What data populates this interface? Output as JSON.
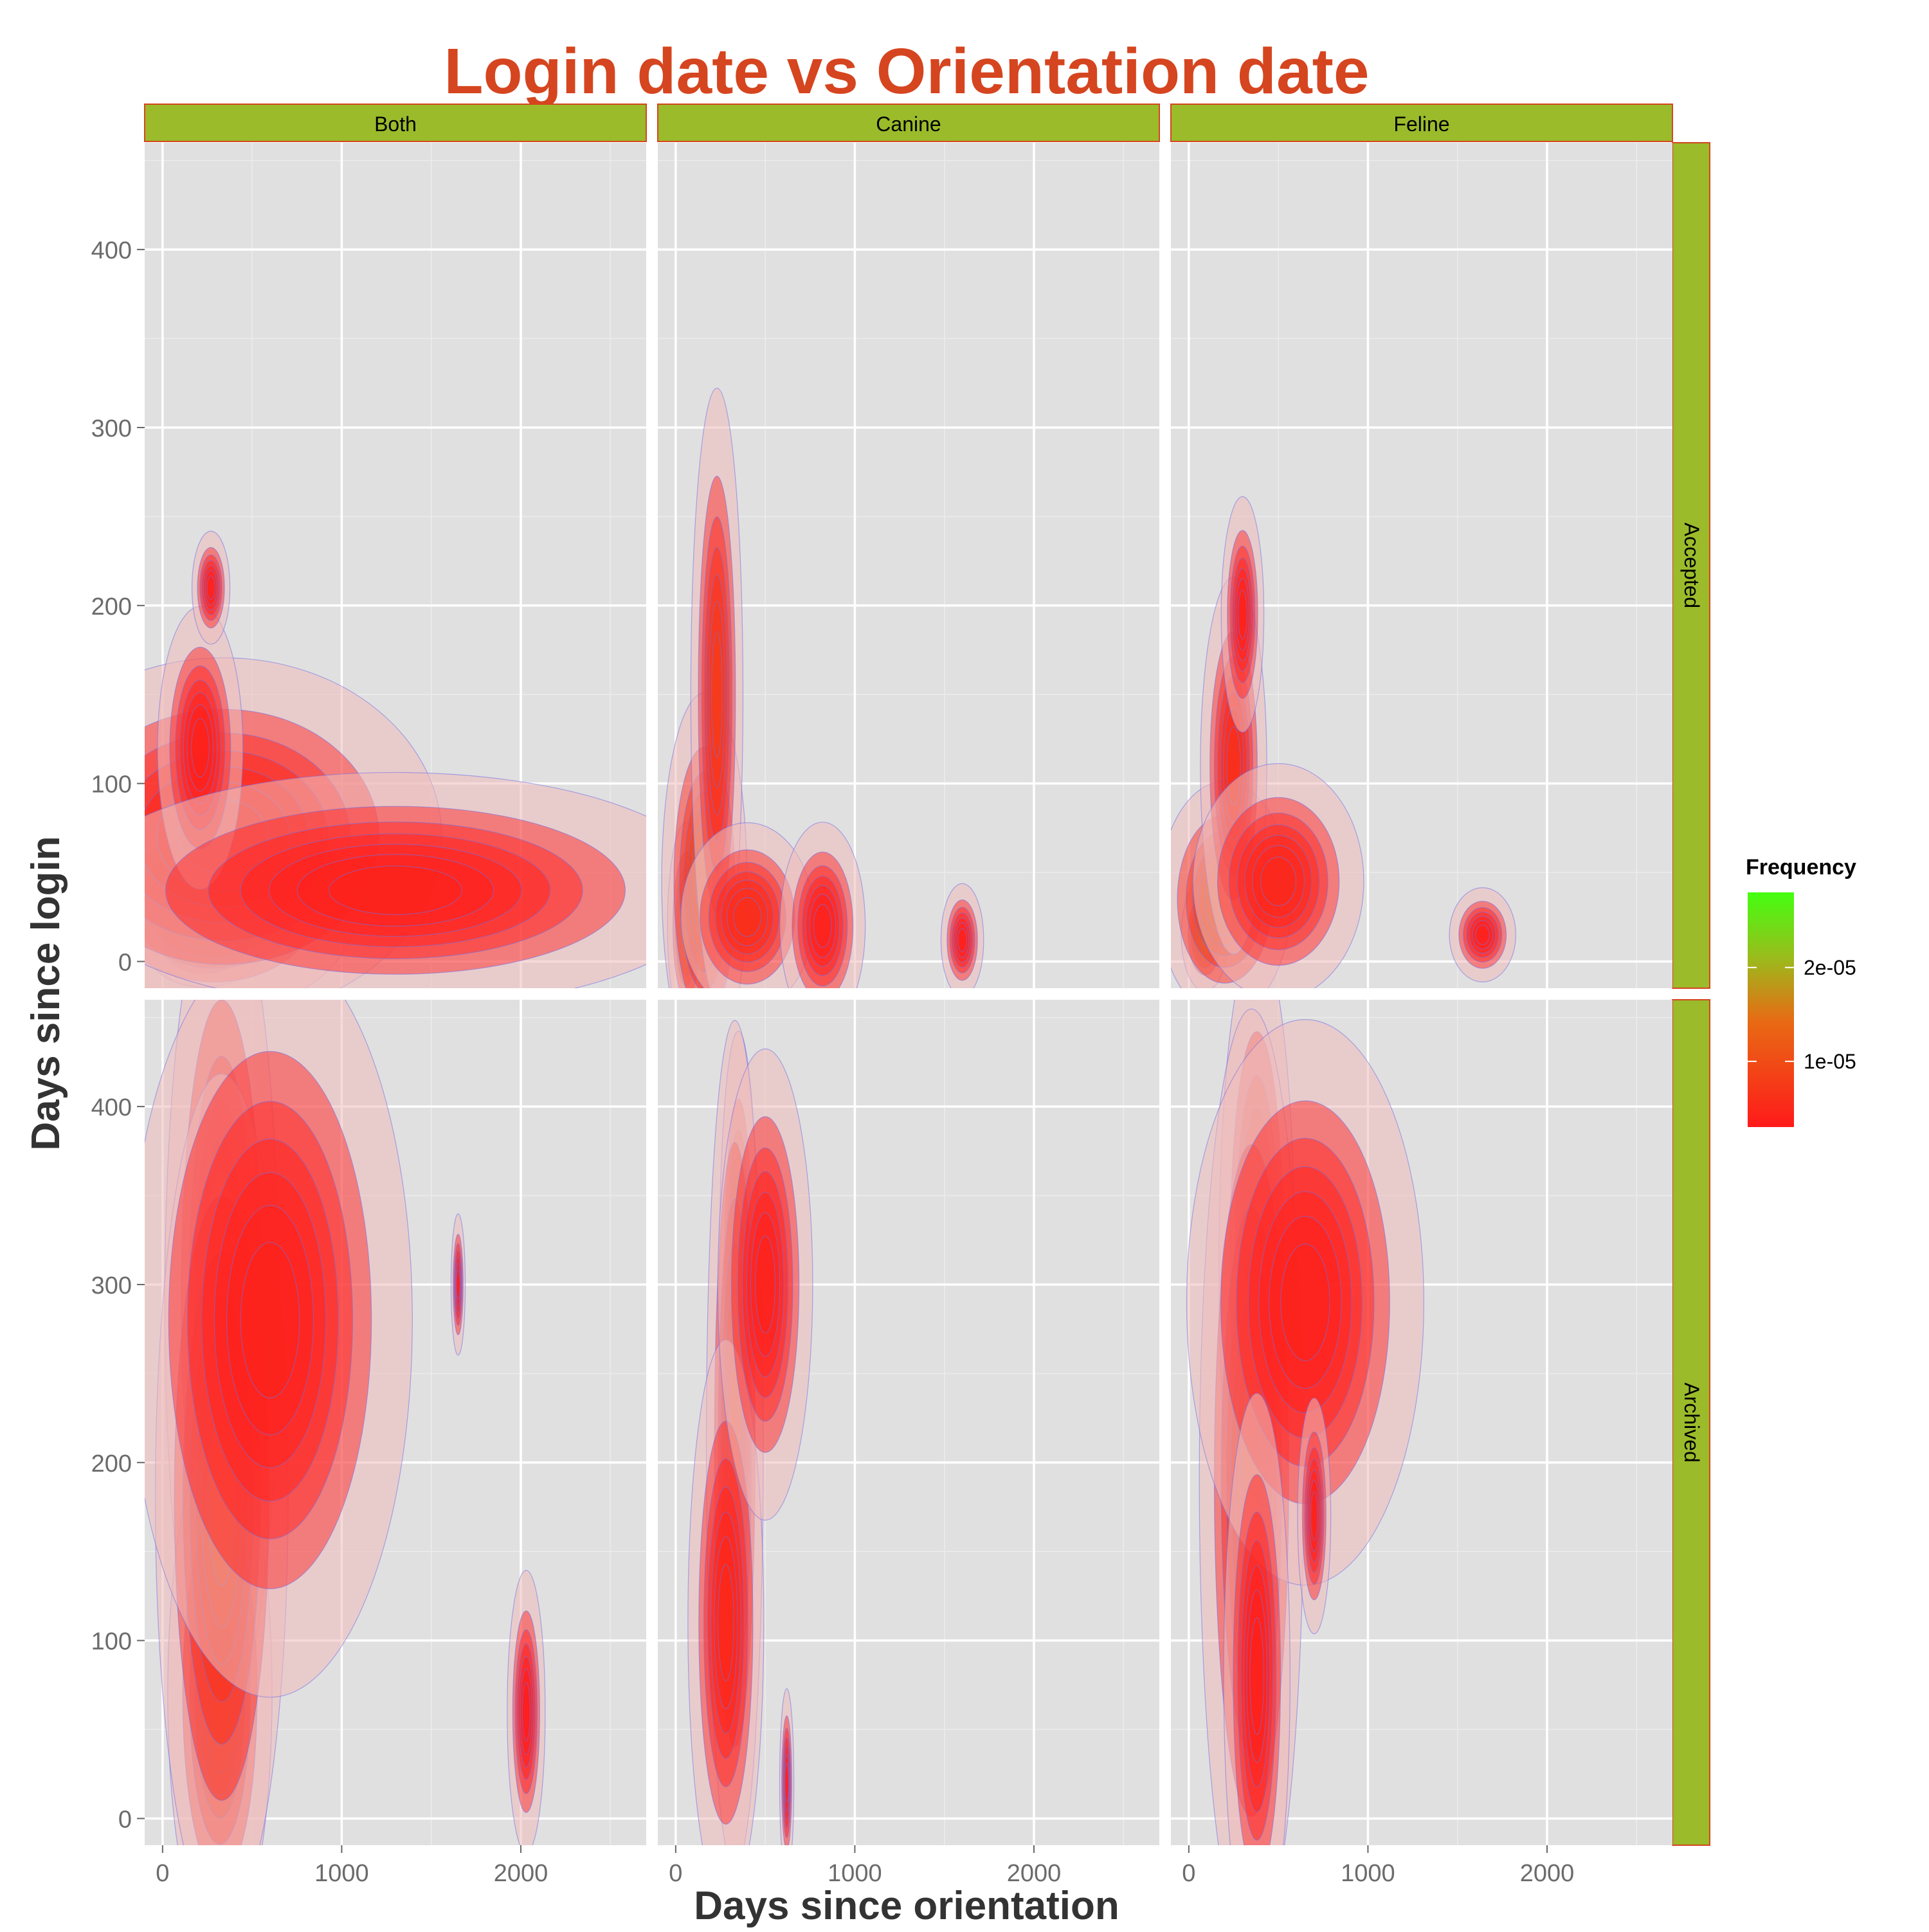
{
  "chart_data": {
    "type": "density",
    "title": "Login date vs Orientation date",
    "xlabel": "Days since orientation",
    "ylabel": "Days since login",
    "facet_columns": [
      "Both",
      "Canine",
      "Feline"
    ],
    "facet_rows": [
      "Accepted",
      "Archived"
    ],
    "xlim": [
      -100,
      2700
    ],
    "ylim": [
      -15,
      460
    ],
    "x_ticks": [
      0,
      1000,
      2000
    ],
    "y_ticks": [
      0,
      100,
      200,
      300,
      400
    ],
    "grid": true,
    "legend": {
      "title": "Frequency",
      "position": "right",
      "ticks": [
        {
          "value": 1e-05,
          "label": "1e-05"
        },
        {
          "value": 2e-05,
          "label": "2e-05"
        }
      ],
      "range": [
        3e-06,
        2.8e-05
      ],
      "low_color": "#ff1a1a",
      "high_color": "#44ff11"
    },
    "panels": [
      {
        "column": "Both",
        "row": "Accepted",
        "blobs": [
          {
            "x": 230,
            "y": 12,
            "sx": 130,
            "sy": 10,
            "peak": 2.2e-05
          },
          {
            "x": 290,
            "y": 30,
            "sx": 300,
            "sy": 22,
            "peak": 1.1e-05
          },
          {
            "x": 340,
            "y": 70,
            "sx": 460,
            "sy": 38,
            "peak": 5e-06
          },
          {
            "x": 210,
            "y": 120,
            "sx": 90,
            "sy": 30,
            "peak": 4e-06
          },
          {
            "x": 1300,
            "y": 40,
            "sx": 680,
            "sy": 25,
            "peak": 4e-06
          },
          {
            "x": 270,
            "y": 210,
            "sx": 40,
            "sy": 12,
            "peak": 4e-06
          }
        ]
      },
      {
        "column": "Canine",
        "row": "Accepted",
        "blobs": [
          {
            "x": 60,
            "y": 20,
            "sx": 40,
            "sy": 22,
            "peak": 2.1e-05
          },
          {
            "x": 160,
            "y": 45,
            "sx": 90,
            "sy": 40,
            "peak": 1.2e-05
          },
          {
            "x": 230,
            "y": 150,
            "sx": 55,
            "sy": 65,
            "peak": 8e-06
          },
          {
            "x": 400,
            "y": 25,
            "sx": 140,
            "sy": 20,
            "peak": 6e-06
          },
          {
            "x": 820,
            "y": 20,
            "sx": 90,
            "sy": 22,
            "peak": 4e-06
          },
          {
            "x": 1600,
            "y": 12,
            "sx": 45,
            "sy": 12,
            "peak": 3.5e-06
          }
        ]
      },
      {
        "column": "Feline",
        "row": "Accepted",
        "blobs": [
          {
            "x": 90,
            "y": 15,
            "sx": 50,
            "sy": 12,
            "peak": 2.8e-05
          },
          {
            "x": 200,
            "y": 35,
            "sx": 140,
            "sy": 25,
            "peak": 1.3e-05
          },
          {
            "x": 250,
            "y": 110,
            "sx": 70,
            "sy": 40,
            "peak": 6e-06
          },
          {
            "x": 300,
            "y": 195,
            "sx": 45,
            "sy": 25,
            "peak": 4e-06
          },
          {
            "x": 500,
            "y": 45,
            "sx": 180,
            "sy": 25,
            "peak": 5e-06
          },
          {
            "x": 1640,
            "y": 15,
            "sx": 70,
            "sy": 10,
            "peak": 3.5e-06
          }
        ]
      },
      {
        "column": "Both",
        "row": "Archived",
        "blobs": [
          {
            "x": 330,
            "y": 290,
            "sx": 120,
            "sy": 90,
            "peak": 1.1e-05
          },
          {
            "x": 320,
            "y": 70,
            "sx": 110,
            "sy": 55,
            "peak": 1.05e-05
          },
          {
            "x": 330,
            "y": 180,
            "sx": 140,
            "sy": 90,
            "peak": 9e-06
          },
          {
            "x": 600,
            "y": 280,
            "sx": 300,
            "sy": 80,
            "peak": 4e-06
          },
          {
            "x": 2030,
            "y": 60,
            "sx": 40,
            "sy": 30,
            "peak": 3e-06
          },
          {
            "x": 1650,
            "y": 300,
            "sx": 15,
            "sy": 15,
            "peak": 3e-06
          }
        ]
      },
      {
        "column": "Canine",
        "row": "Archived",
        "blobs": [
          {
            "x": 350,
            "y": 310,
            "sx": 40,
            "sy": 50,
            "peak": 2.3e-05
          },
          {
            "x": 330,
            "y": 210,
            "sx": 60,
            "sy": 90,
            "peak": 9e-06
          },
          {
            "x": 280,
            "y": 110,
            "sx": 80,
            "sy": 60,
            "peak": 5e-06
          },
          {
            "x": 500,
            "y": 300,
            "sx": 100,
            "sy": 50,
            "peak": 4e-06
          },
          {
            "x": 620,
            "y": 20,
            "sx": 15,
            "sy": 20,
            "peak": 3.5e-06
          }
        ]
      },
      {
        "column": "Feline",
        "row": "Archived",
        "blobs": [
          {
            "x": 380,
            "y": 310,
            "sx": 80,
            "sy": 70,
            "peak": 1.3e-05
          },
          {
            "x": 350,
            "y": 190,
            "sx": 110,
            "sy": 100,
            "peak": 8e-06
          },
          {
            "x": 650,
            "y": 290,
            "sx": 250,
            "sy": 60,
            "peak": 4e-06
          },
          {
            "x": 380,
            "y": 80,
            "sx": 70,
            "sy": 60,
            "peak": 4e-06
          },
          {
            "x": 700,
            "y": 170,
            "sx": 35,
            "sy": 25,
            "peak": 4e-06
          }
        ]
      }
    ]
  }
}
